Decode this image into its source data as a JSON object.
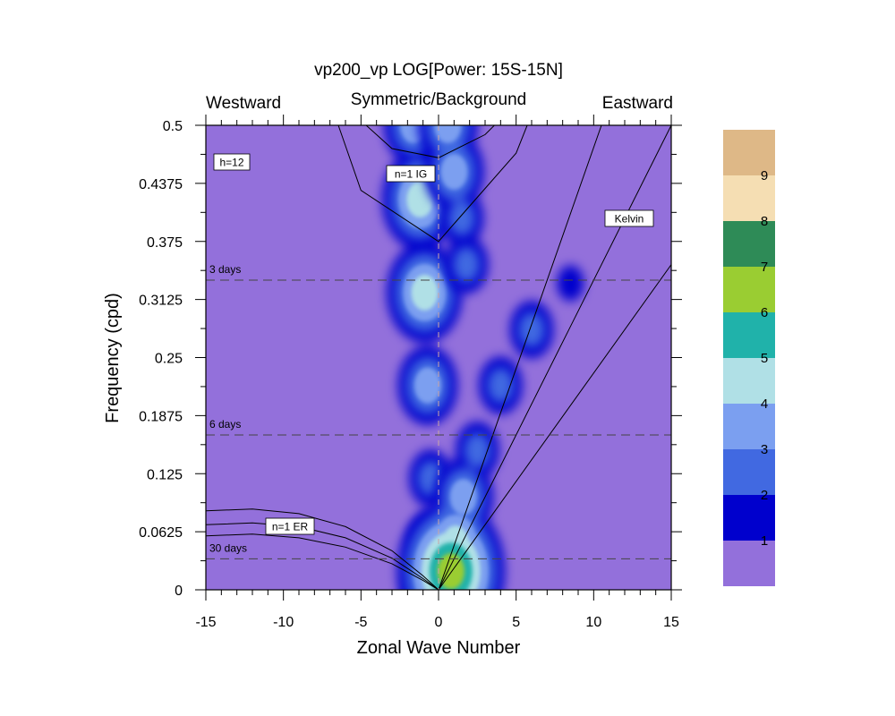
{
  "chart_data": {
    "type": "heatmap",
    "title": "vp200_vp LOG[Power: 15S-15N]",
    "subtitle_left": "Westward",
    "subtitle_center": "Symmetric/Background",
    "subtitle_right": "Eastward",
    "xlabel": "Zonal Wave Number",
    "ylabel": "Frequency (cpd)",
    "xlim": [
      -15,
      15
    ],
    "ylim": [
      0,
      0.5
    ],
    "x_ticks": [
      -15,
      -10,
      -5,
      0,
      5,
      10,
      15
    ],
    "y_ticks": [
      0,
      0.0625,
      0.125,
      0.1875,
      0.25,
      0.3125,
      0.375,
      0.4375,
      0.5
    ],
    "y_tick_labels": [
      "0",
      "0.0625",
      "0.125",
      "0.1875",
      "0.25",
      "0.3125",
      "0.375",
      "0.4375",
      "0.5"
    ],
    "colorbar": {
      "levels": [
        "1",
        "2",
        "3",
        "4",
        "5",
        "6",
        "7",
        "8",
        "9"
      ],
      "colors": [
        "#9370db",
        "#0000cd",
        "#4169e1",
        "#7b9ff0",
        "#b0e0e6",
        "#20b2aa",
        "#9acd32",
        "#2e8b57",
        "#f5deb3",
        "#deb887"
      ]
    },
    "period_lines": [
      {
        "label": "3 days",
        "frequency": 0.3333
      },
      {
        "label": "6 days",
        "frequency": 0.1667
      },
      {
        "label": "30 days",
        "frequency": 0.0333
      }
    ],
    "dispersion_labels": [
      "h=12",
      "n=1 IG",
      "Kelvin",
      "n=1 ER"
    ],
    "kelvin_lines": [
      {
        "k": [
          0,
          15
        ],
        "f": [
          0,
          0.5
        ]
      },
      {
        "k": [
          0,
          10.5
        ],
        "f": [
          0,
          0.5
        ]
      },
      {
        "k": [
          0,
          15
        ],
        "f": [
          0,
          0.35
        ]
      }
    ],
    "ig_curves": [
      {
        "k": [
          -15,
          -10,
          -5,
          0,
          5,
          10,
          15
        ],
        "f": [
          0.97,
          0.67,
          0.43,
          0.375,
          0.47,
          0.68,
          0.97
        ]
      },
      {
        "k": [
          -9,
          -6,
          -3,
          0,
          3,
          6,
          9
        ],
        "f": [
          0.58,
          0.52,
          0.475,
          0.465,
          0.49,
          0.54,
          0.6
        ]
      }
    ],
    "er_curves": [
      {
        "k": [
          -15,
          -12,
          -9,
          -6,
          -3,
          -1,
          0
        ],
        "f": [
          0.085,
          0.087,
          0.082,
          0.068,
          0.042,
          0.015,
          0
        ]
      },
      {
        "k": [
          -15,
          -12,
          -9,
          -6,
          -3,
          -1,
          0
        ],
        "f": [
          0.07,
          0.072,
          0.068,
          0.056,
          0.034,
          0.012,
          0
        ]
      },
      {
        "k": [
          -15,
          -12,
          -9,
          -6,
          -3,
          -1,
          0
        ],
        "f": [
          0.058,
          0.06,
          0.056,
          0.046,
          0.028,
          0.01,
          0
        ]
      }
    ],
    "features": [
      {
        "name": "westward high-frequency band",
        "k": [
          -1.6,
          -1.2,
          -0.9,
          -0.7,
          -0.5,
          -0.6,
          -0.8
        ],
        "f": [
          0.5,
          0.42,
          0.32,
          0.22,
          0.12,
          0.05,
          0.0
        ],
        "levels": [
          3,
          4,
          4,
          3,
          2,
          2,
          2
        ]
      },
      {
        "name": "kelvin ridge",
        "k": [
          0.8,
          1.1,
          1.6,
          2.5,
          4.0,
          6.0,
          8.5
        ],
        "f": [
          0.02,
          0.05,
          0.1,
          0.15,
          0.22,
          0.28,
          0.33
        ],
        "levels": [
          6,
          4,
          3,
          2,
          2,
          2,
          1
        ]
      },
      {
        "name": "eastward ig band",
        "k": [
          0.6,
          1.0,
          1.5,
          1.8
        ],
        "f": [
          0.5,
          0.45,
          0.4,
          0.35
        ],
        "levels": [
          3,
          3,
          2,
          2
        ]
      }
    ],
    "grid": false
  }
}
